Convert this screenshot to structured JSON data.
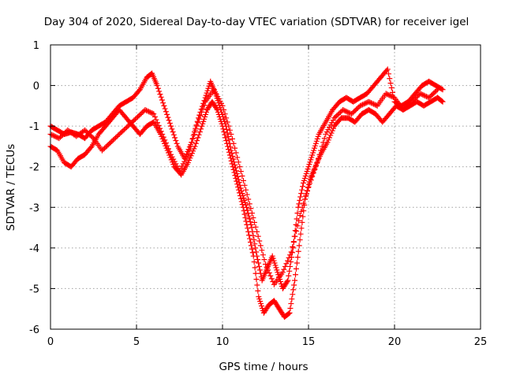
{
  "chart_data": {
    "type": "scatter",
    "title": "Day 304 of 2020, Sidereal Day-to-day VTEC variation (SDTVAR) for receiver igel",
    "xlabel": "GPS time / hours",
    "ylabel": "SDTVAR / TECUs",
    "xlim": [
      0,
      25
    ],
    "ylim": [
      -6,
      1
    ],
    "xticks": [
      0,
      5,
      10,
      15,
      20,
      25
    ],
    "yticks": [
      1,
      0,
      -1,
      -2,
      -3,
      -4,
      -5,
      -6
    ],
    "grid": true,
    "marker": "plus",
    "color": "#ff0000",
    "series": [
      {
        "x": [
          0.0,
          0.4,
          0.8,
          1.2,
          1.6,
          2.0,
          2.4,
          2.8,
          3.2,
          3.6,
          4.0,
          4.4,
          4.8,
          5.2,
          5.6,
          5.9,
          6.2,
          6.6,
          7.0,
          7.4,
          7.8,
          8.2,
          8.6,
          9.0,
          9.3,
          9.6,
          9.9,
          10.2,
          10.5,
          10.8,
          11.1,
          11.4,
          11.7,
          12.0,
          12.3,
          12.6,
          12.9,
          13.2,
          13.5,
          13.8,
          14.1,
          14.4,
          14.7,
          15.0,
          15.3,
          15.6,
          16.0,
          16.4,
          16.8,
          17.2,
          17.6,
          18.0,
          18.4,
          18.8,
          19.2,
          19.6,
          20.0,
          20.4,
          20.8,
          21.2,
          21.6,
          22.0,
          22.4,
          22.8
        ],
        "y": [
          -1.0,
          -1.1,
          -1.2,
          -1.15,
          -1.2,
          -1.3,
          -1.1,
          -1.0,
          -0.9,
          -0.7,
          -0.5,
          -0.4,
          -0.3,
          -0.1,
          0.2,
          0.3,
          0.0,
          -0.5,
          -1.0,
          -1.5,
          -1.8,
          -1.4,
          -0.8,
          -0.3,
          0.1,
          -0.2,
          -0.6,
          -1.0,
          -1.6,
          -2.1,
          -2.6,
          -3.0,
          -3.5,
          -4.2,
          -4.8,
          -4.5,
          -4.2,
          -4.6,
          -5.0,
          -4.8,
          -4.0,
          -3.0,
          -2.4,
          -2.0,
          -1.6,
          -1.2,
          -0.9,
          -0.6,
          -0.4,
          -0.3,
          -0.4,
          -0.3,
          -0.2,
          0.0,
          0.2,
          0.4,
          -0.4,
          -0.5,
          -0.4,
          -0.2,
          0.0,
          0.1,
          0.0,
          -0.1
        ]
      },
      {
        "x": [
          0.0,
          0.4,
          0.8,
          1.2,
          1.6,
          2.0,
          2.4,
          2.8,
          3.2,
          3.6,
          4.0,
          4.4,
          4.8,
          5.2,
          5.6,
          6.0,
          6.4,
          6.8,
          7.2,
          7.6,
          8.0,
          8.4,
          8.8,
          9.1,
          9.4,
          9.7,
          10.0,
          10.3,
          10.6,
          10.9,
          11.2,
          11.5,
          11.8,
          12.1,
          12.4,
          12.7,
          13.0,
          13.3,
          13.6,
          13.9,
          14.2,
          14.5,
          14.8,
          15.1,
          15.4,
          15.7,
          16.1,
          16.5,
          16.9,
          17.3,
          17.7,
          18.1,
          18.5,
          18.9,
          19.3,
          19.7,
          20.1,
          20.5,
          20.9,
          21.3,
          21.7,
          22.1,
          22.5,
          22.8
        ],
        "y": [
          -1.5,
          -1.6,
          -1.9,
          -2.0,
          -1.8,
          -1.7,
          -1.5,
          -1.2,
          -1.0,
          -0.8,
          -0.6,
          -0.8,
          -1.0,
          -1.2,
          -1.0,
          -0.9,
          -1.2,
          -1.6,
          -2.0,
          -2.2,
          -1.9,
          -1.5,
          -1.0,
          -0.6,
          -0.4,
          -0.6,
          -1.0,
          -1.5,
          -2.0,
          -2.5,
          -3.0,
          -3.6,
          -4.2,
          -5.2,
          -5.6,
          -5.4,
          -5.3,
          -5.5,
          -5.7,
          -5.6,
          -4.8,
          -3.8,
          -2.8,
          -2.3,
          -2.0,
          -1.7,
          -1.4,
          -1.0,
          -0.8,
          -0.8,
          -0.9,
          -0.7,
          -0.6,
          -0.7,
          -0.9,
          -0.7,
          -0.5,
          -0.6,
          -0.5,
          -0.4,
          -0.5,
          -0.4,
          -0.3,
          -0.4
        ]
      },
      {
        "x": [
          0.0,
          0.5,
          1.0,
          1.5,
          2.0,
          2.5,
          3.0,
          3.5,
          4.0,
          4.5,
          5.0,
          5.5,
          6.0,
          6.5,
          7.0,
          7.5,
          8.0,
          8.5,
          9.0,
          9.5,
          10.0,
          10.5,
          11.0,
          11.5,
          12.0,
          12.5,
          13.0,
          13.5,
          14.0,
          14.5,
          15.0,
          15.5,
          16.0,
          16.5,
          17.0,
          17.5,
          18.0,
          18.5,
          19.0,
          19.5,
          20.0,
          20.5,
          21.0,
          21.5,
          22.0,
          22.5
        ],
        "y": [
          -1.2,
          -1.3,
          -1.1,
          -1.25,
          -1.1,
          -1.3,
          -1.6,
          -1.4,
          -1.2,
          -1.0,
          -0.8,
          -0.6,
          -0.7,
          -1.2,
          -1.7,
          -2.1,
          -1.7,
          -1.0,
          -0.4,
          -0.1,
          -0.5,
          -1.2,
          -2.0,
          -2.8,
          -3.6,
          -4.4,
          -4.9,
          -4.6,
          -4.1,
          -3.2,
          -2.5,
          -1.9,
          -1.2,
          -0.8,
          -0.6,
          -0.7,
          -0.5,
          -0.4,
          -0.5,
          -0.2,
          -0.3,
          -0.6,
          -0.4,
          -0.2,
          -0.3,
          -0.1
        ]
      }
    ]
  }
}
